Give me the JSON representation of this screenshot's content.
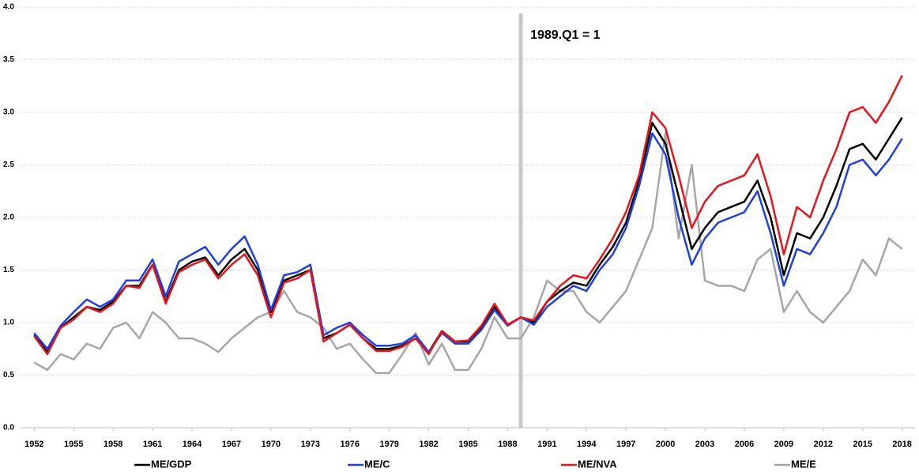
{
  "chart_data": {
    "type": "line",
    "x": [
      1952,
      1953,
      1954,
      1955,
      1956,
      1957,
      1958,
      1959,
      1960,
      1961,
      1962,
      1963,
      1964,
      1965,
      1966,
      1967,
      1968,
      1969,
      1970,
      1971,
      1972,
      1973,
      1974,
      1975,
      1976,
      1977,
      1978,
      1979,
      1980,
      1981,
      1982,
      1983,
      1984,
      1985,
      1986,
      1987,
      1988,
      1989,
      1990,
      1991,
      1992,
      1993,
      1994,
      1995,
      1996,
      1997,
      1998,
      1999,
      2000,
      2001,
      2002,
      2003,
      2004,
      2005,
      2006,
      2007,
      2008,
      2009,
      2010,
      2011,
      2012,
      2013,
      2014,
      2015,
      2016,
      2017,
      2018
    ],
    "series": [
      {
        "name": "ME/GDP",
        "color": "#000000",
        "values": [
          0.88,
          0.72,
          0.95,
          1.05,
          1.15,
          1.12,
          1.2,
          1.35,
          1.35,
          1.55,
          1.2,
          1.5,
          1.58,
          1.62,
          1.45,
          1.6,
          1.7,
          1.5,
          1.1,
          1.4,
          1.45,
          1.5,
          0.85,
          0.9,
          0.98,
          0.85,
          0.75,
          0.75,
          0.78,
          0.85,
          0.72,
          0.92,
          0.82,
          0.82,
          0.95,
          1.15,
          0.98,
          1.05,
          1.0,
          1.2,
          1.3,
          1.38,
          1.35,
          1.55,
          1.72,
          1.95,
          2.35,
          2.9,
          2.7,
          2.2,
          1.7,
          1.9,
          2.05,
          2.1,
          2.15,
          2.35,
          2.0,
          1.45,
          1.85,
          1.8,
          2.0,
          2.3,
          2.65,
          2.7,
          2.55,
          2.75,
          2.95
        ]
      },
      {
        "name": "ME/C",
        "color": "#1f3fe0",
        "values": [
          0.9,
          0.75,
          0.97,
          1.1,
          1.22,
          1.15,
          1.22,
          1.4,
          1.4,
          1.6,
          1.25,
          1.58,
          1.65,
          1.72,
          1.55,
          1.7,
          1.82,
          1.55,
          1.12,
          1.45,
          1.48,
          1.55,
          0.88,
          0.95,
          1.0,
          0.88,
          0.78,
          0.78,
          0.8,
          0.88,
          0.72,
          0.9,
          0.8,
          0.8,
          0.93,
          1.12,
          0.97,
          1.05,
          0.98,
          1.15,
          1.25,
          1.35,
          1.3,
          1.5,
          1.65,
          1.9,
          2.3,
          2.8,
          2.6,
          2.0,
          1.55,
          1.8,
          1.95,
          2.0,
          2.05,
          2.25,
          1.85,
          1.35,
          1.7,
          1.65,
          1.85,
          2.1,
          2.5,
          2.55,
          2.4,
          2.55,
          2.75
        ]
      },
      {
        "name": "ME/NVA",
        "color": "#e8141b",
        "values": [
          0.87,
          0.7,
          0.95,
          1.03,
          1.15,
          1.1,
          1.18,
          1.35,
          1.33,
          1.55,
          1.18,
          1.48,
          1.55,
          1.6,
          1.42,
          1.55,
          1.65,
          1.45,
          1.05,
          1.38,
          1.42,
          1.5,
          0.82,
          0.9,
          0.98,
          0.85,
          0.73,
          0.73,
          0.77,
          0.85,
          0.7,
          0.92,
          0.82,
          0.83,
          0.97,
          1.18,
          0.98,
          1.05,
          1.02,
          1.2,
          1.35,
          1.45,
          1.42,
          1.6,
          1.8,
          2.05,
          2.4,
          3.0,
          2.85,
          2.4,
          1.9,
          2.15,
          2.3,
          2.35,
          2.4,
          2.6,
          2.2,
          1.65,
          2.1,
          2.0,
          2.35,
          2.65,
          3.0,
          3.05,
          2.9,
          3.1,
          3.35
        ]
      },
      {
        "name": "ME/E",
        "color": "#a6a6a6",
        "values": [
          0.62,
          0.55,
          0.7,
          0.65,
          0.8,
          0.75,
          0.95,
          1.0,
          0.85,
          1.1,
          1.0,
          0.85,
          0.85,
          0.8,
          0.72,
          0.85,
          0.95,
          1.05,
          1.1,
          1.3,
          1.1,
          1.05,
          0.95,
          0.75,
          0.8,
          0.65,
          0.52,
          0.52,
          0.7,
          0.9,
          0.6,
          0.8,
          0.55,
          0.55,
          0.75,
          1.05,
          0.85,
          0.85,
          1.05,
          1.4,
          1.3,
          1.3,
          1.1,
          1.0,
          1.15,
          1.3,
          1.6,
          1.9,
          2.8,
          1.8,
          2.5,
          1.4,
          1.35,
          1.35,
          1.3,
          1.6,
          1.7,
          1.1,
          1.3,
          1.1,
          1.0,
          1.15,
          1.3,
          1.6,
          1.45,
          1.8,
          1.7
        ]
      }
    ],
    "xlim": [
      1951.5,
      2018.5
    ],
    "xticks": [
      1952,
      1955,
      1958,
      1961,
      1964,
      1967,
      1970,
      1973,
      1976,
      1979,
      1982,
      1985,
      1988,
      1991,
      1994,
      1997,
      2000,
      2003,
      2006,
      2009,
      2012,
      2015,
      2018
    ],
    "ylim": [
      0,
      4
    ],
    "yticks": [
      {
        "value": 0,
        "label": "0.0"
      },
      0.5,
      {
        "value": 1,
        "label": "1.0"
      },
      1.5,
      {
        "value": 2,
        "label": "2.0"
      },
      2.5,
      {
        "value": 3,
        "label": "3.0"
      },
      3.5,
      {
        "value": 4,
        "label": "4.0"
      }
    ],
    "grid": true,
    "legend": "bottom",
    "annotation": {
      "x": 1989,
      "text": "1989.Q1 = 1",
      "color": "#c8c8c8"
    }
  }
}
